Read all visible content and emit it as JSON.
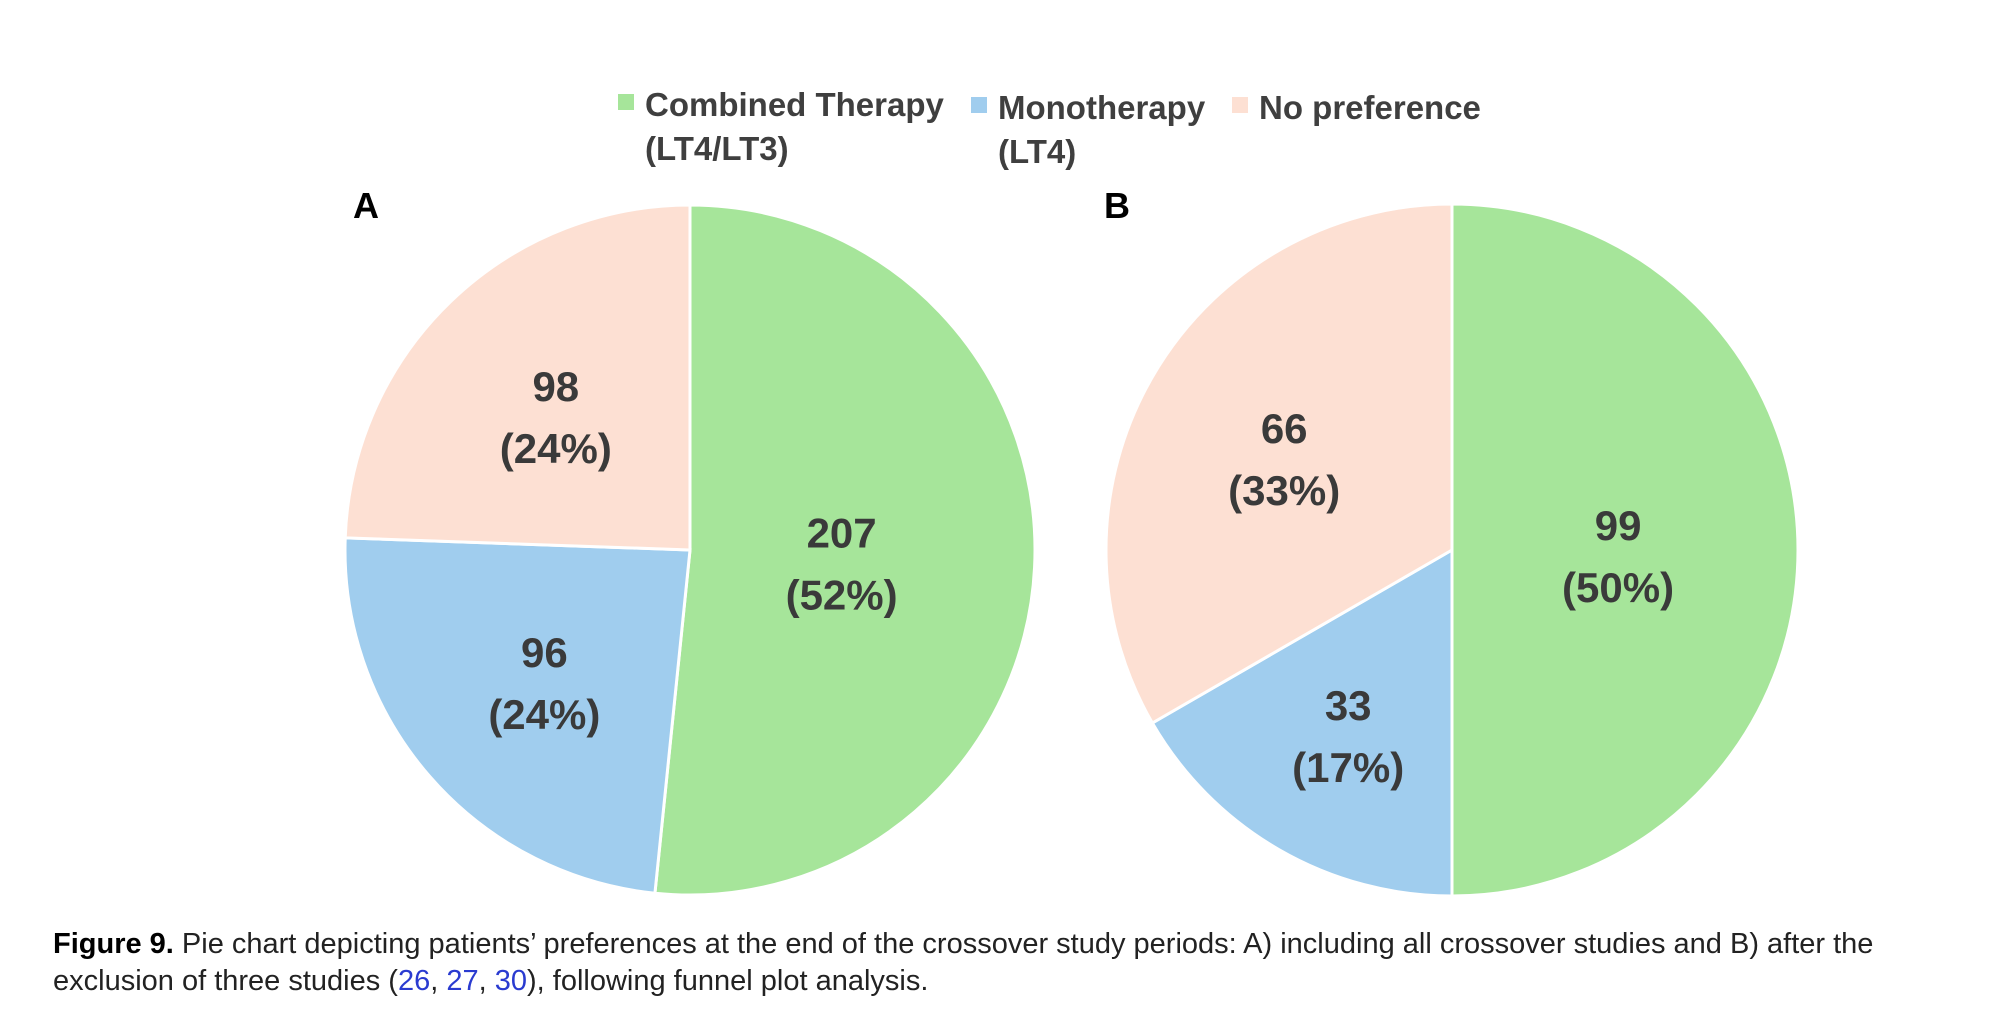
{
  "colors": {
    "combined": "#a6e59a",
    "mono": "#a0cdee",
    "nopref": "#fde0d3",
    "label_text": "#3a3a3a",
    "link": "#2a3bd0"
  },
  "chart_data": [
    {
      "type": "pie",
      "panel": "A",
      "labels": [
        "Combined Therapy (LT4/LT3)",
        "Monotherapy (LT4)",
        "No preference"
      ],
      "values": [
        207,
        96,
        98
      ],
      "percent_labels": [
        "(52%)",
        "(24%)",
        "(24%)"
      ],
      "colors": [
        "#a6e59a",
        "#a0cdee",
        "#fde0d3"
      ],
      "start": "12 o'clock",
      "direction": "clockwise"
    },
    {
      "type": "pie",
      "panel": "B",
      "labels": [
        "Combined Therapy (LT4/LT3)",
        "Monotherapy (LT4)",
        "No preference"
      ],
      "values": [
        99,
        33,
        66
      ],
      "percent_labels": [
        "(50%)",
        "(17%)",
        "(33%)"
      ],
      "colors": [
        "#a6e59a",
        "#a0cdee",
        "#fde0d3"
      ],
      "start": "12 o'clock",
      "direction": "clockwise"
    }
  ],
  "legend": {
    "placement": "top-center",
    "items": [
      {
        "line1": "Combined Therapy",
        "line2": "(LT4/LT3)",
        "color": "#a6e59a"
      },
      {
        "line1": "Monotherapy",
        "line2": "(LT4)",
        "color": "#a0cdee"
      },
      {
        "line1": "No preference",
        "line2": "",
        "color": "#fde0d3"
      }
    ]
  },
  "caption": {
    "label": "Figure 9.",
    "text_before": " Pie chart depicting patients’ preferences at the end of the crossover study periods: A) including all crossover studies and B) after the exclusion of three studies (",
    "ref1": "26",
    "sep1": ", ",
    "ref2": "27",
    "sep2": ", ",
    "ref3": "30",
    "text_after": "), following funnel plot analysis."
  }
}
